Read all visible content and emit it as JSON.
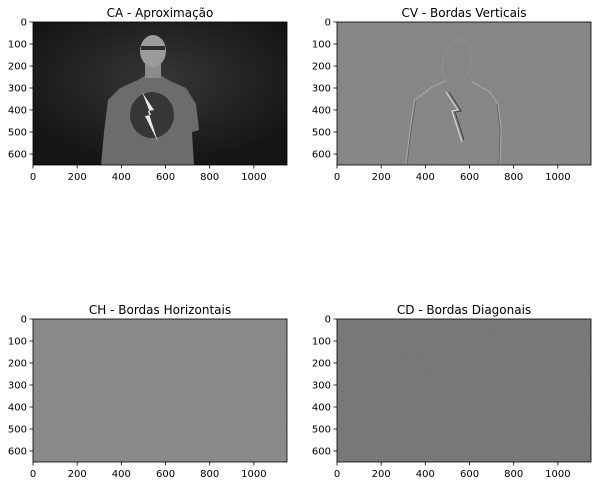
{
  "chart_data": [
    {
      "type": "heatmap",
      "title": "CA - Aproximação",
      "xticks": [
        0,
        200,
        400,
        600,
        800,
        1000
      ],
      "yticks": [
        0,
        100,
        200,
        300,
        400,
        500,
        600
      ],
      "xlim": [
        0,
        1150
      ],
      "ylim": [
        650,
        0
      ],
      "colormap": "gray",
      "content": "person-thermal"
    },
    {
      "type": "heatmap",
      "title": "CV - Bordas Verticais",
      "xticks": [
        0,
        200,
        400,
        600,
        800,
        1000
      ],
      "yticks": [
        0,
        100,
        200,
        300,
        400,
        500,
        600
      ],
      "xlim": [
        0,
        1150
      ],
      "ylim": [
        650,
        0
      ],
      "colormap": "gray",
      "content": "vertical-edges"
    },
    {
      "type": "heatmap",
      "title": "CH - Bordas Horizontais",
      "xticks": [
        0,
        200,
        400,
        600,
        800,
        1000
      ],
      "yticks": [
        0,
        100,
        200,
        300,
        400,
        500,
        600
      ],
      "xlim": [
        0,
        1150
      ],
      "ylim": [
        650,
        0
      ],
      "colormap": "gray",
      "content": "horizontal-edges"
    },
    {
      "type": "heatmap",
      "title": "CD - Bordas Diagonais",
      "xticks": [
        0,
        200,
        400,
        600,
        800,
        1000
      ],
      "yticks": [
        0,
        100,
        200,
        300,
        400,
        500,
        600
      ],
      "xlim": [
        0,
        1150
      ],
      "ylim": [
        650,
        0
      ],
      "colormap": "gray",
      "content": "diagonal-edges"
    }
  ]
}
